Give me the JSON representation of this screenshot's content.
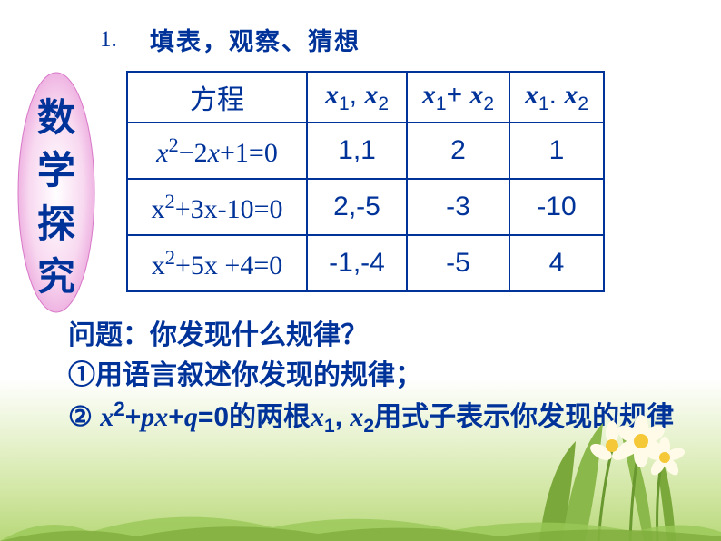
{
  "heading": {
    "number": "1.",
    "text": "填表，观察、猜想"
  },
  "badge": {
    "chars": [
      "数",
      "学",
      "探",
      "究"
    ],
    "gradient_start": "#f5b8e8",
    "gradient_end": "#ffffff",
    "text_color": "#003399"
  },
  "table": {
    "border_color": "#003399",
    "text_color": "#003399",
    "headers": {
      "eq": "方程",
      "roots_html": "<span class='var-x'>x</span><span class='sub'>1</span>, <span class='var-x'>x</span><span class='sub'>2</span>",
      "sum_html": "<span class='var-x'>x</span><span class='sub'>1</span>+ <span class='var-x'>x</span><span class='sub'>2</span>",
      "prod_html": "<span class='var-x'>x</span><span class='sub'>1</span>. <span class='var-x'>x</span><span class='sub'>2</span>"
    },
    "rows": [
      {
        "eq_html": "<span class='var-x'>x</span><span class='sup'>2</span>−2<span class='var-x'>x</span>+1=0",
        "roots": "1,1",
        "sum": "2",
        "prod": "1"
      },
      {
        "eq_html": "x<span class='sup'>2</span>+3x-10=0",
        "roots": "2,-5",
        "sum": "-3",
        "prod": "-10"
      },
      {
        "eq_html": "x<span class='sup'>2</span>+5x +4=0",
        "roots": "-1,-4",
        "sum": "-5",
        "prod": "4"
      }
    ]
  },
  "questions": {
    "q": "问题：你发现什么规律？",
    "a": "①用语言叙述你发现的规律；",
    "b_pre": "② ",
    "b_eq_html": "<span class='eq-inline'>x</span><span class='sup'>2</span>+<span class='eq-inline'>px</span>+<span class='eq-inline'>q</span>=0",
    "b_mid": "的两根",
    "b_roots_html": "<span class='eq-inline'>x</span><span class='sub'>1</span>, <span class='eq-inline'>x</span><span class='sub'>2</span>",
    "b_end": "用式子表示你发现的规律"
  },
  "colors": {
    "primary": "#003399",
    "bg_top": "#ffffff",
    "bg_bottom": "#b8d87a"
  }
}
